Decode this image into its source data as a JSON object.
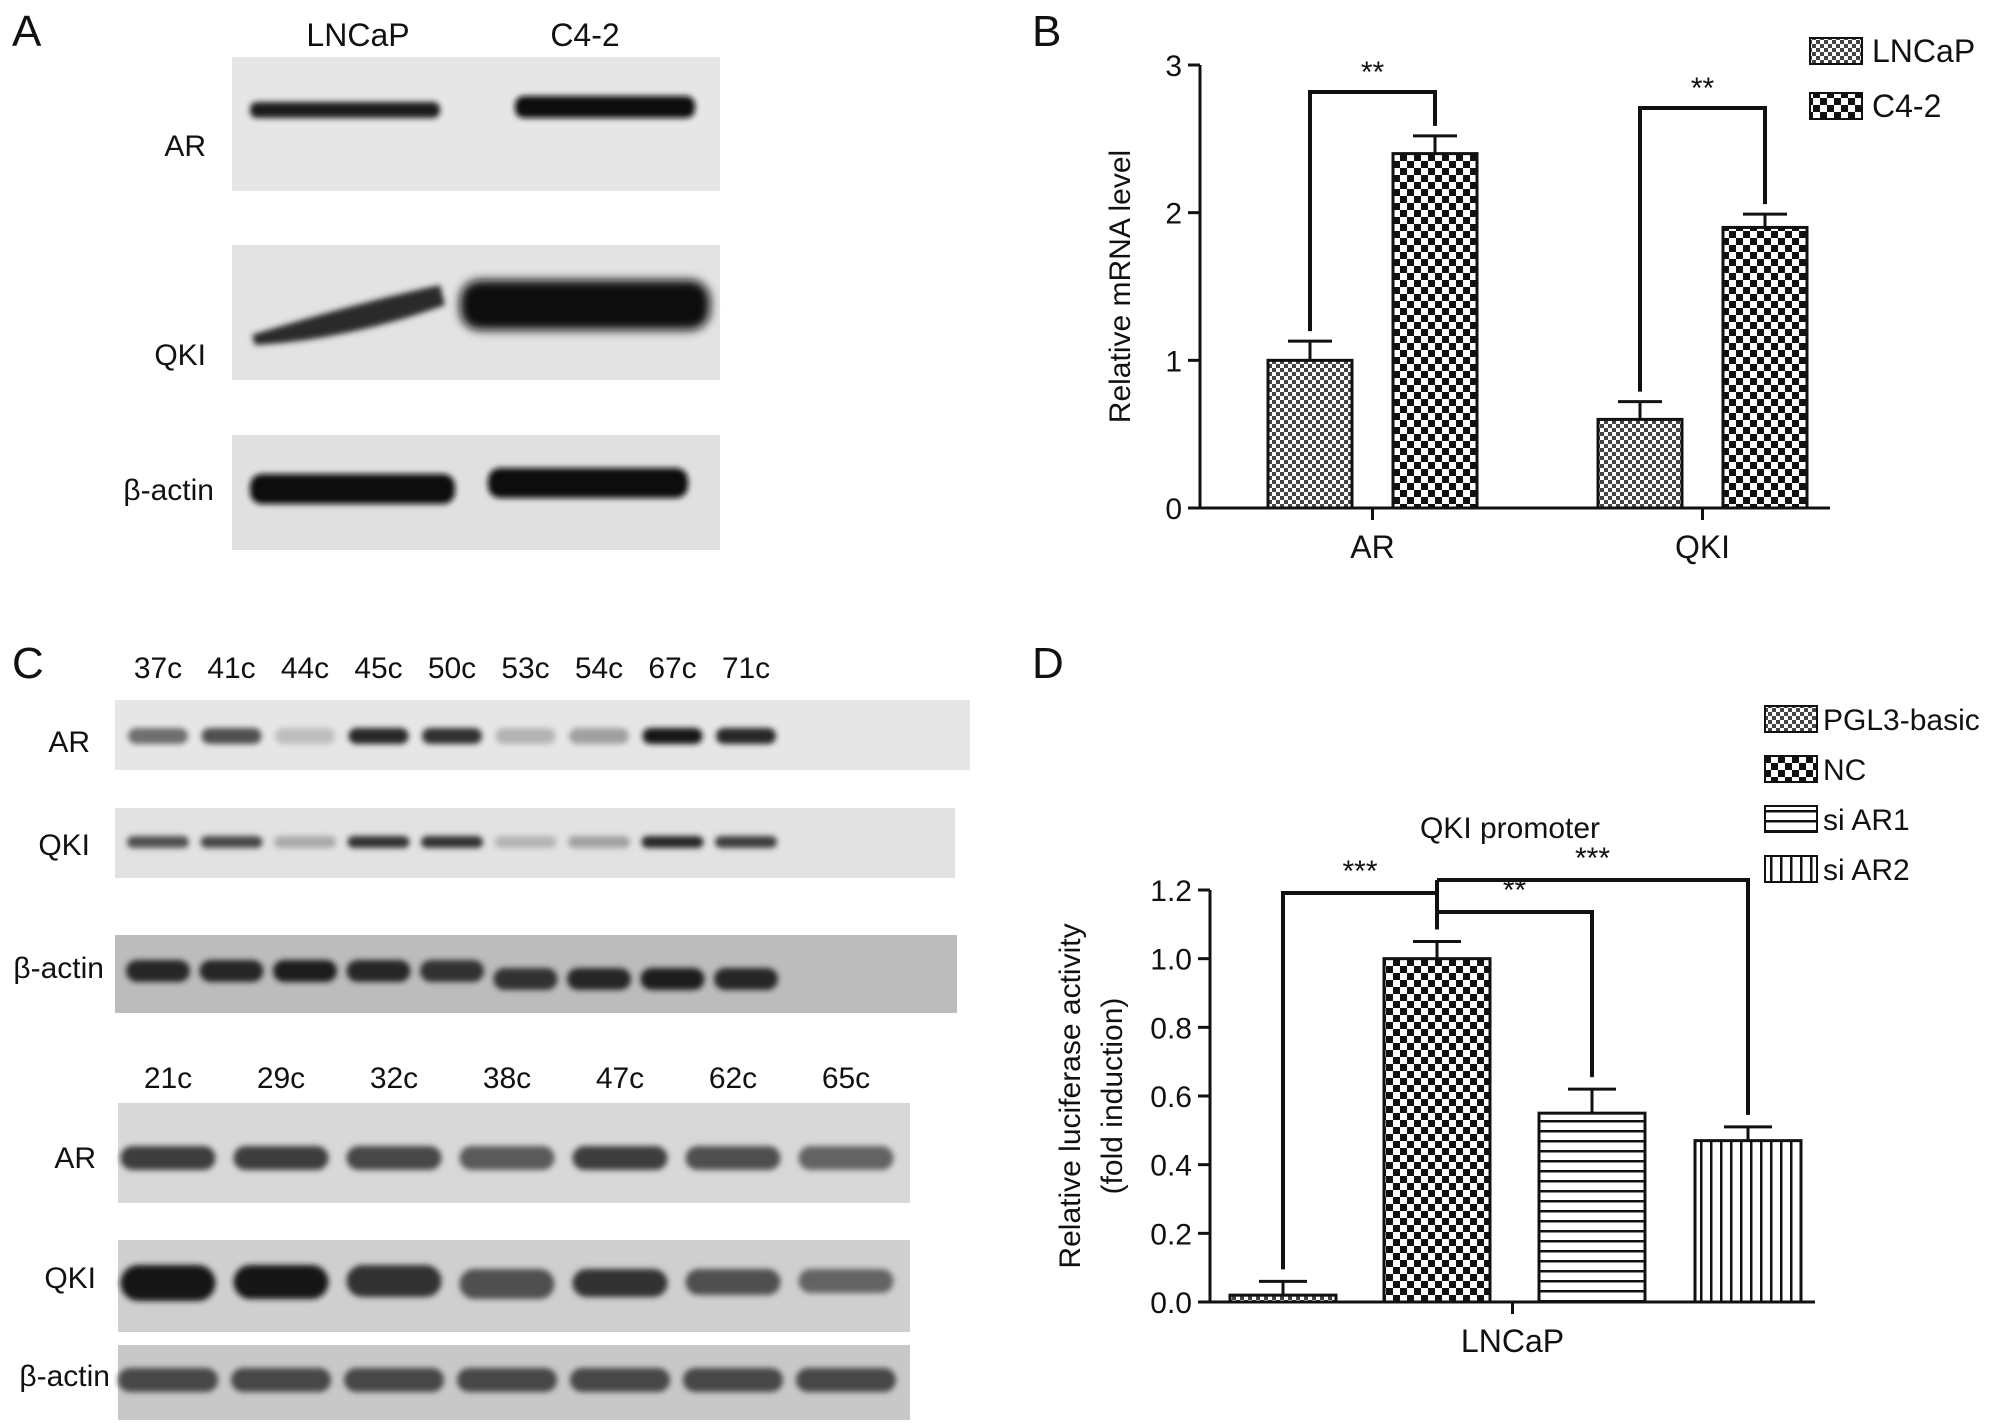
{
  "panels": {
    "A": {
      "letter": "A",
      "columns": [
        "LNCaP",
        "C4-2"
      ],
      "rows": [
        "AR",
        "QKI",
        "β-actin"
      ]
    },
    "B": {
      "letter": "B"
    },
    "C": {
      "letter": "C",
      "top": {
        "columns": [
          "37c",
          "41c",
          "44c",
          "45c",
          "50c",
          "53c",
          "54c",
          "67c",
          "71c"
        ],
        "rows": [
          "AR",
          "QKI",
          "β-actin"
        ]
      },
      "bottom": {
        "columns": [
          "21c",
          "29c",
          "32c",
          "38c",
          "47c",
          "62c",
          "65c"
        ],
        "rows": [
          "AR",
          "QKI",
          "β-actin"
        ]
      }
    },
    "D": {
      "letter": "D"
    }
  },
  "chart_data": [
    {
      "panel": "B",
      "type": "bar",
      "title": "",
      "xlabel": "",
      "ylabel": "Relative mRNA level",
      "ylim": [
        0,
        3
      ],
      "yticks": [
        "0",
        "1",
        "2",
        "3"
      ],
      "categories": [
        "AR",
        "QKI"
      ],
      "legend_position": "top-right",
      "series": [
        {
          "name": "LNCaP",
          "values": [
            1.0,
            0.6
          ],
          "errors": [
            0.13,
            0.12
          ],
          "pattern": "fine-check"
        },
        {
          "name": "C4-2",
          "values": [
            2.4,
            1.9
          ],
          "errors": [
            0.12,
            0.09
          ],
          "pattern": "coarse-check"
        }
      ],
      "annotations": [
        {
          "text": "**",
          "category": "AR"
        },
        {
          "text": "**",
          "category": "QKI"
        }
      ]
    },
    {
      "panel": "D",
      "type": "bar",
      "title": "QKI promoter",
      "xlabel": "LNCaP",
      "ylabel": [
        "Relative luciferase activity",
        "(fold induction)"
      ],
      "ylim": [
        0,
        1.2
      ],
      "yticks": [
        "0.0",
        "0.2",
        "0.4",
        "0.6",
        "0.8",
        "1.0",
        "1.2"
      ],
      "legend_position": "top-right",
      "series": [
        {
          "name": "PGL3-basic",
          "values": [
            0.02
          ],
          "errors": [
            0.04
          ],
          "pattern": "fine-check"
        },
        {
          "name": "NC",
          "values": [
            1.0
          ],
          "errors": [
            0.05
          ],
          "pattern": "coarse-check"
        },
        {
          "name": "si AR1",
          "values": [
            0.55
          ],
          "errors": [
            0.07
          ],
          "pattern": "h-stripes"
        },
        {
          "name": "si AR2",
          "values": [
            0.47
          ],
          "errors": [
            0.04
          ],
          "pattern": "v-stripes"
        }
      ],
      "annotations": [
        {
          "text": "***",
          "from": "NC",
          "to": "PGL3-basic"
        },
        {
          "text": "**",
          "from": "NC",
          "to": "si AR1"
        },
        {
          "text": "***",
          "from": "NC",
          "to": "si AR2"
        }
      ]
    }
  ]
}
